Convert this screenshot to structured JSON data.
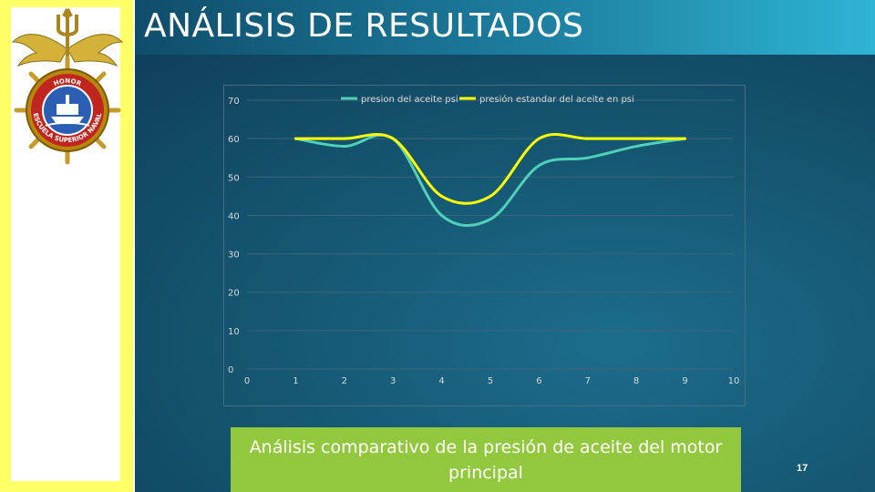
{
  "slide": {
    "title": "ANÁLISIS DE RESULTADOS",
    "caption": "Análisis comparativo  de la presión de aceite del motor principal",
    "page_number": "17"
  },
  "logo": {
    "top_text": "HONOR",
    "ring_text": "ESCUELA SUPERIOR NAVAL"
  },
  "colors": {
    "header_accent": "#2fb4d3",
    "caption_bg": "#92c83e",
    "frame_yellow": "#ffff66",
    "series_1": "#4fd1b8",
    "series_2": "#ffff00"
  },
  "chart_data": {
    "type": "line",
    "title": "",
    "xlabel": "",
    "ylabel": "",
    "xlim": [
      0,
      10
    ],
    "ylim": [
      0,
      70
    ],
    "x_ticks": [
      0,
      1,
      2,
      3,
      4,
      5,
      6,
      7,
      8,
      9,
      10
    ],
    "y_ticks": [
      0,
      10,
      20,
      30,
      40,
      50,
      60,
      70
    ],
    "legend_position": "top",
    "grid": true,
    "smooth": true,
    "series": [
      {
        "name": "presion del aceite psi",
        "color": "#4fd1b8",
        "x": [
          1,
          2,
          3,
          4,
          5,
          6,
          7,
          8,
          9
        ],
        "y": [
          60,
          58,
          60,
          40,
          39,
          53,
          55,
          58,
          60
        ]
      },
      {
        "name": "presión estandar del aceite en psi",
        "color": "#ffff00",
        "x": [
          1,
          2,
          3,
          4,
          5,
          6,
          7,
          8,
          9
        ],
        "y": [
          60,
          60,
          60,
          45,
          45,
          60,
          60,
          60,
          60
        ]
      }
    ]
  }
}
